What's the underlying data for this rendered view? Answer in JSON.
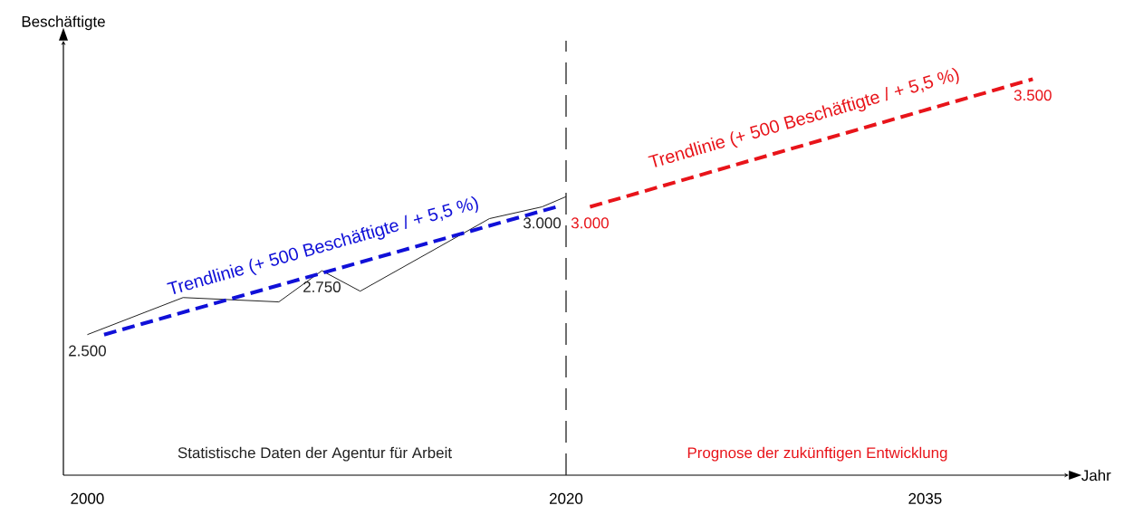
{
  "chart_data": {
    "type": "line",
    "xlabel": "Jahr",
    "ylabel": "Beschäftigte",
    "xlim": [
      1999,
      2041
    ],
    "ylim": [
      1950,
      3650
    ],
    "xticks": [
      2000,
      2020,
      2035
    ],
    "tick_labels": "x",
    "grid": false,
    "legend": false,
    "marker": "none",
    "series": [
      {
        "color": "#222222",
        "line_style": "solid",
        "x": [
          2000,
          2004,
          2008,
          2009.8,
          2011.4,
          2016.8,
          2019,
          2020
        ],
        "values": [
          2500,
          2645,
          2628,
          2750,
          2670,
          2954,
          3000,
          3040
        ],
        "value_labels": [
          "2.500",
          null,
          null,
          "2.750",
          null,
          null,
          "3.000",
          null
        ]
      },
      {
        "name": "Trendlinie (+ 500 Beschäftigte / + 5,5 %)",
        "color": "#1010d8",
        "line_style": "dashed",
        "x": [
          2000.7,
          2019.6
        ],
        "values": [
          2500,
          3000
        ]
      },
      {
        "name": "Trendlinie (+ 500 Beschäftigte / + 5,5 %)",
        "color": "#e8141a",
        "line_style": "dashed",
        "x": [
          2021,
          2039.5
        ],
        "values": [
          3000,
          3500
        ],
        "value_labels": [
          "3.000",
          "3.500"
        ]
      }
    ],
    "ref_lines": [
      {
        "axis": "x",
        "value": 2020,
        "color": "#222222",
        "line_style": "dashed"
      }
    ],
    "annotations": [
      "Statistische Daten der Agentur für Arbeit",
      "Prognose der zukünftigen Entwicklung"
    ]
  }
}
